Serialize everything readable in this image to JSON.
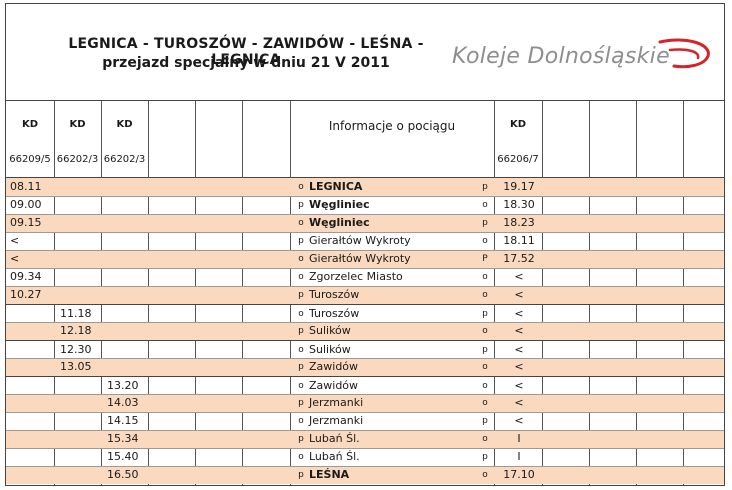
{
  "header": {
    "title_line1": "LEGNICA - TUROSZÓW - ZAWIDÓW - LEŚNA - LEGNICA",
    "title_line2": "przejazd specjalny w dniu 21 V 2011",
    "logo_text": "Koleje Dolnośląskie",
    "logo_color": "#d4242a"
  },
  "columns": {
    "kd_labels": [
      "KD",
      "KD",
      "KD",
      "KD"
    ],
    "train_numbers": [
      "66209/5",
      "66202/3",
      "66202/3",
      "66206/7"
    ],
    "info_header": "Informacje o pociągu"
  },
  "rows": [
    {
      "t1": "08.11",
      "t2": "",
      "t3": "",
      "a1": "o",
      "station": "LEGNICA",
      "a2": "p",
      "t4": "19.17",
      "shade": true,
      "bold": true
    },
    {
      "t1": "09.00",
      "t2": "",
      "t3": "",
      "a1": "p",
      "station": "Węgliniec",
      "a2": "o",
      "t4": "18.30",
      "shade": false,
      "bold": true
    },
    {
      "t1": "09.15",
      "t2": "",
      "t3": "",
      "a1": "o",
      "station": "Węgliniec",
      "a2": "p",
      "t4": "18.23",
      "shade": true,
      "bold": true
    },
    {
      "t1": "<",
      "t2": "",
      "t3": "",
      "a1": "p",
      "station": "Gierałtów Wykroty",
      "a2": "o",
      "t4": "18.11",
      "shade": false,
      "bold": false
    },
    {
      "t1": "<",
      "t2": "",
      "t3": "",
      "a1": "o",
      "station": "Gierałtów Wykroty",
      "a2": "P",
      "t4": "17.52",
      "shade": true,
      "bold": false
    },
    {
      "t1": "09.34",
      "t2": "",
      "t3": "",
      "a1": "o",
      "station": "Zgorzelec Miasto",
      "a2": "o",
      "t4": "<",
      "shade": false,
      "bold": false
    },
    {
      "t1": "10.27",
      "t2": "",
      "t3": "",
      "a1": "p",
      "station": "Turoszów",
      "a2": "o",
      "t4": "<",
      "shade": true,
      "bold": false
    },
    {
      "t1": "",
      "t2": "11.18",
      "t3": "",
      "a1": "o",
      "station": "Turoszów",
      "a2": "p",
      "t4": "<",
      "shade": false,
      "bold": false,
      "sep": true
    },
    {
      "t1": "",
      "t2": "12.18",
      "t3": "",
      "a1": "p",
      "station": "Sulików",
      "a2": "o",
      "t4": "<",
      "shade": true,
      "bold": false
    },
    {
      "t1": "",
      "t2": "12.30",
      "t3": "",
      "a1": "o",
      "station": "Sulików",
      "a2": "p",
      "t4": "<",
      "shade": false,
      "bold": false,
      "sep": true
    },
    {
      "t1": "",
      "t2": "13.05",
      "t3": "",
      "a1": "p",
      "station": "Zawidów",
      "a2": "o",
      "t4": "<",
      "shade": true,
      "bold": false
    },
    {
      "t1": "",
      "t2": "",
      "t3": "13.20",
      "a1": "o",
      "station": "Zawidów",
      "a2": "o",
      "t4": "<",
      "shade": false,
      "bold": false,
      "sep": true
    },
    {
      "t1": "",
      "t2": "",
      "t3": "14.03",
      "a1": "p",
      "station": "Jerzmanki",
      "a2": "o",
      "t4": "<",
      "shade": true,
      "bold": false
    },
    {
      "t1": "",
      "t2": "",
      "t3": "14.15",
      "a1": "o",
      "station": "Jerzmanki",
      "a2": "p",
      "t4": "<",
      "shade": false,
      "bold": false
    },
    {
      "t1": "",
      "t2": "",
      "t3": "15.34",
      "a1": "p",
      "station": "Lubań Śl.",
      "a2": "o",
      "t4": "I",
      "shade": true,
      "bold": false
    },
    {
      "t1": "",
      "t2": "",
      "t3": "15.40",
      "a1": "o",
      "station": "Lubań Śl.",
      "a2": "p",
      "t4": "I",
      "shade": false,
      "bold": false
    },
    {
      "t1": "",
      "t2": "",
      "t3": "16.50",
      "a1": "p",
      "station": "LEŚNA",
      "a2": "o",
      "t4": "17.10",
      "shade": true,
      "bold": true
    }
  ]
}
